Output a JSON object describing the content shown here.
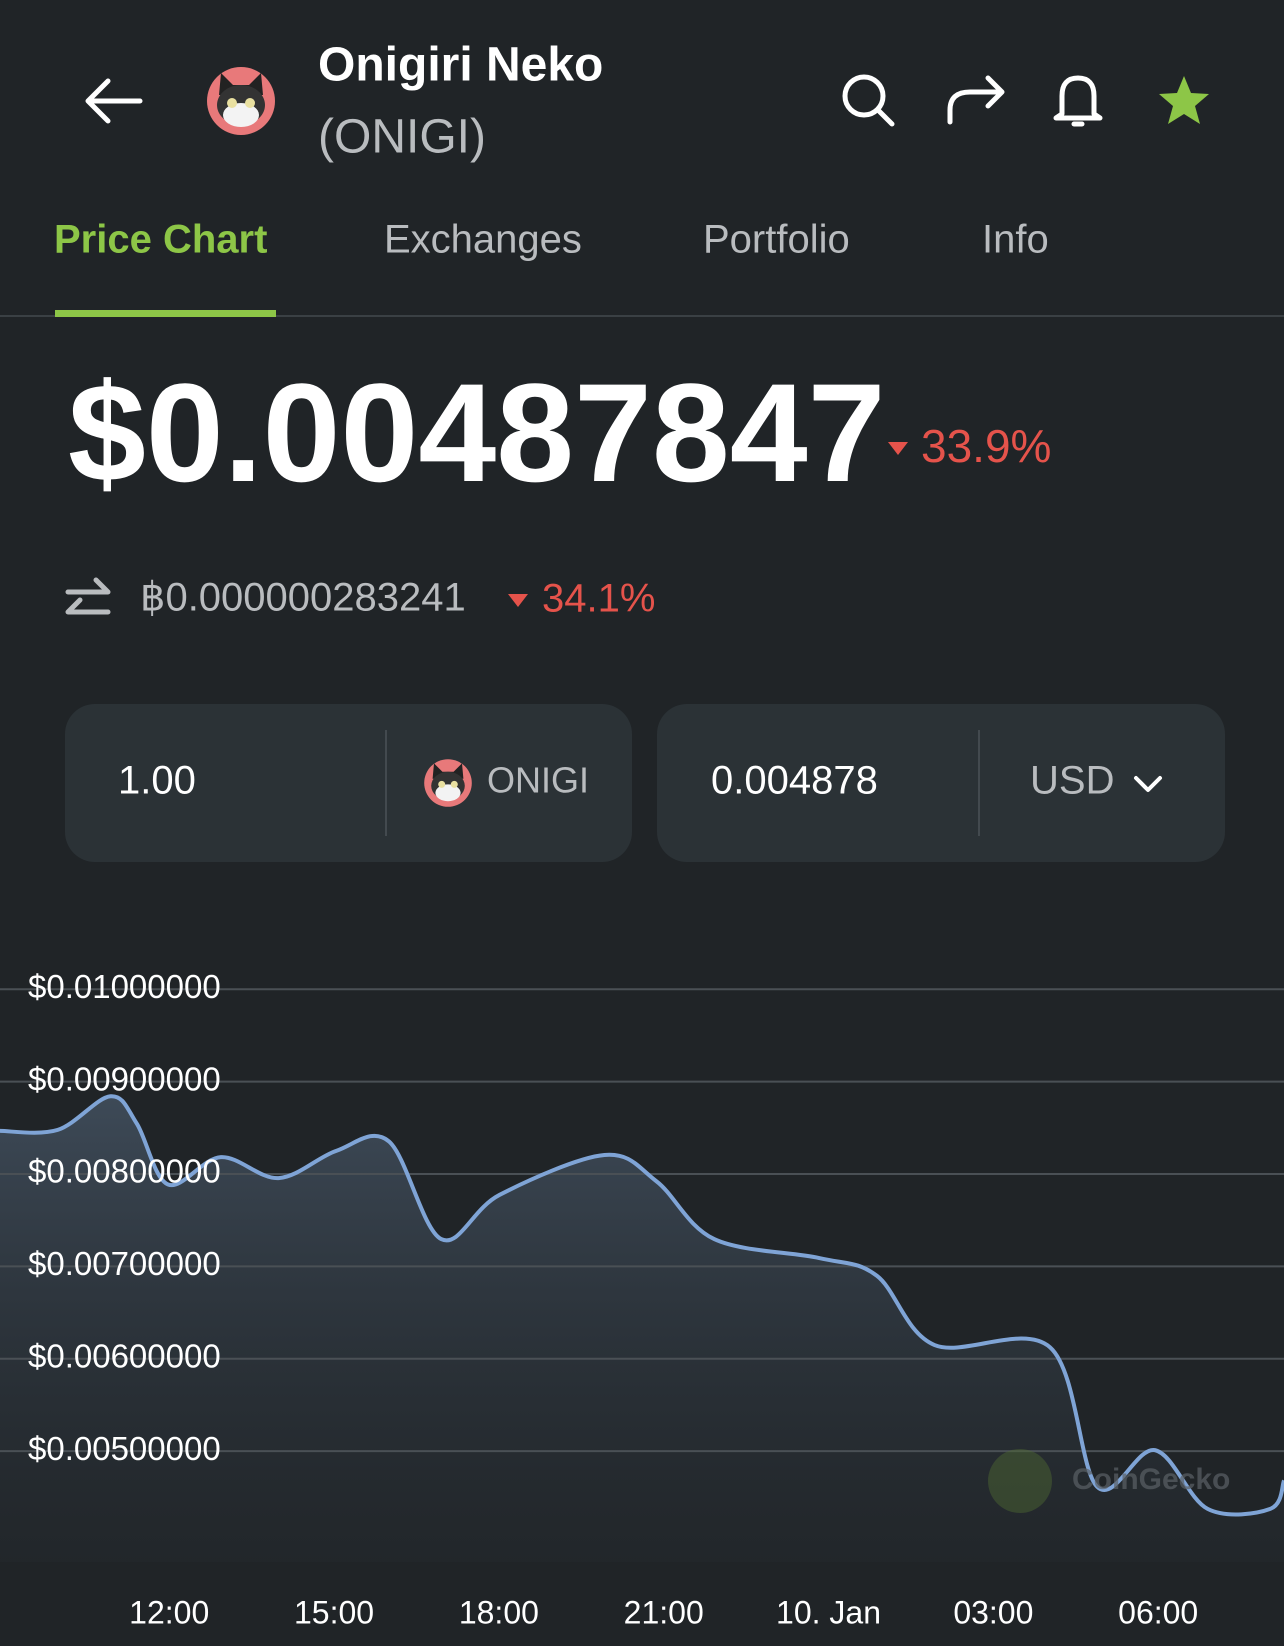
{
  "header": {
    "name": "Onigiri Neko",
    "symbol": "(ONIGI)"
  },
  "tabs": [
    "Price Chart",
    "Exchanges",
    "Portfolio",
    "Info"
  ],
  "price": {
    "usd": "$0.00487847",
    "usd_change": "33.9%",
    "btc": "฿0.000000283241",
    "btc_change": "34.1%"
  },
  "converter": {
    "amount": "1.00",
    "coin": "ONIGI",
    "converted": "0.004878",
    "currency": "USD"
  },
  "watermark": "CoinGecko",
  "chart_data": {
    "type": "area",
    "color": "#7fa4d6",
    "grid": true,
    "x": [
      8.92,
      9.97,
      10.93,
      11.41,
      11.98,
      12.94,
      13.99,
      15.04,
      16.0,
      16.95,
      18.01,
      19.92,
      20.87,
      21.92,
      23.83,
      24.88,
      25.93,
      28.03,
      28.89,
      29.94,
      30.9,
      32.04,
      32.29
    ],
    "values": [
      0.008466,
      0.008477,
      0.008841,
      0.008545,
      0.007886,
      0.008182,
      0.007955,
      0.00825,
      0.008352,
      0.007295,
      0.007773,
      0.008205,
      0.00792,
      0.007295,
      0.00709,
      0.006898,
      0.006148,
      0.006125,
      0.004614,
      0.005011,
      0.004375,
      0.004375,
      0.004682
    ],
    "xlim": [
      8.92,
      32.29
    ],
    "xticks": [
      {
        "value": 12,
        "label": "12:00"
      },
      {
        "value": 15,
        "label": "15:00"
      },
      {
        "value": 18,
        "label": "18:00"
      },
      {
        "value": 21,
        "label": "21:00"
      },
      {
        "value": 24,
        "label": "10. Jan"
      },
      {
        "value": 27,
        "label": "03:00"
      },
      {
        "value": 30,
        "label": "06:00"
      }
    ],
    "ylim": [
      0.0038,
      0.0105
    ],
    "yticks": [
      {
        "value": 0.005,
        "label": "$0.00500000"
      },
      {
        "value": 0.006,
        "label": "$0.00600000"
      },
      {
        "value": 0.007,
        "label": "$0.00700000"
      },
      {
        "value": 0.008,
        "label": "$0.00800000"
      },
      {
        "value": 0.009,
        "label": "$0.00900000"
      },
      {
        "value": 0.01,
        "label": "$0.01000000"
      }
    ]
  }
}
